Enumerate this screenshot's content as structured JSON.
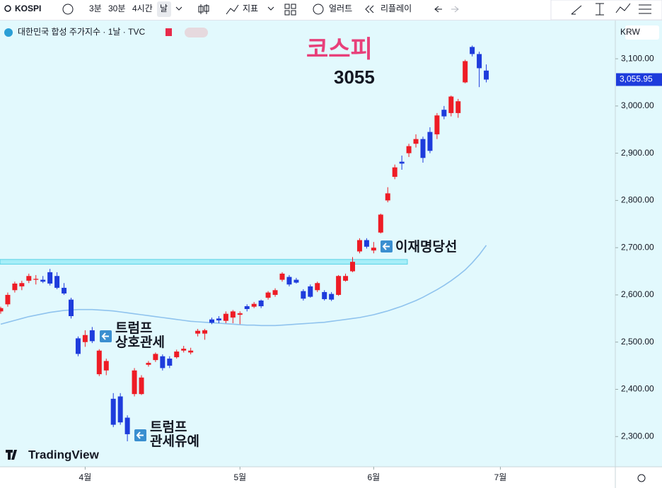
{
  "toolbar": {
    "symbol": "KOSPI",
    "intervals": [
      "3분",
      "30분",
      "4시간",
      "날"
    ],
    "indicators": "지표",
    "alerts": "얼러트",
    "replay": "리플레이"
  },
  "chart_data": {
    "type": "candlestick",
    "title": "대한민국 합성 주가지수 · 1날 · TVC",
    "currency": "KRW",
    "logo": "TradingView",
    "up_color": "#ee1c25",
    "down_color": "#1e3cdc",
    "ylim": [
      2236,
      3181
    ],
    "yticks": [
      {
        "value": 2300,
        "label": "2,300.00"
      },
      {
        "value": 2400,
        "label": "2,400.00"
      },
      {
        "value": 2500,
        "label": "2,500.00"
      },
      {
        "value": 2600,
        "label": "2,600.00"
      },
      {
        "value": 2700,
        "label": "2,700.00"
      },
      {
        "value": 2800,
        "label": "2,800.00"
      },
      {
        "value": 2900,
        "label": "2,900.00"
      },
      {
        "value": 3000,
        "label": "3,000.00"
      },
      {
        "value": 3100,
        "label": "3,100.00"
      }
    ],
    "xticks": [
      {
        "value": 12,
        "label": "4월"
      },
      {
        "value": 34,
        "label": "5월"
      },
      {
        "value": 53,
        "label": "6월"
      },
      {
        "value": 71,
        "label": "7월"
      }
    ],
    "last_price": {
      "value": 3055.95,
      "label": "3,055.95"
    },
    "band": [
      2665,
      2675
    ],
    "annotations": {
      "main_title": "코스피",
      "main_value": "3055",
      "tariff": [
        "트럼프",
        "상호관세"
      ],
      "election": "이재명당선",
      "pause": [
        "트럼프",
        "관세유예"
      ]
    },
    "candles": [
      [
        2565,
        2575,
        2560,
        2572
      ],
      [
        2580,
        2605,
        2575,
        2600
      ],
      [
        2610,
        2628,
        2605,
        2624
      ],
      [
        2618,
        2630,
        2610,
        2625
      ],
      [
        2630,
        2645,
        2625,
        2640
      ],
      [
        2632,
        2642,
        2622,
        2634
      ],
      [
        2632,
        2640,
        2625,
        2628
      ],
      [
        2648,
        2655,
        2620,
        2624
      ],
      [
        2640,
        2648,
        2612,
        2615
      ],
      [
        2615,
        2625,
        2600,
        2603
      ],
      [
        2590,
        2594,
        2550,
        2555
      ],
      [
        2508,
        2512,
        2470,
        2475
      ],
      [
        2500,
        2525,
        2490,
        2515
      ],
      [
        2525,
        2532,
        2498,
        2502
      ],
      [
        2432,
        2485,
        2428,
        2482
      ],
      [
        2440,
        2465,
        2430,
        2460
      ],
      [
        2380,
        2392,
        2320,
        2325
      ],
      [
        2385,
        2392,
        2325,
        2330
      ],
      [
        2340,
        2345,
        2290,
        2305
      ],
      [
        2390,
        2445,
        2385,
        2440
      ],
      [
        2390,
        2430,
        2388,
        2425
      ],
      [
        2452,
        2460,
        2448,
        2456
      ],
      [
        2462,
        2478,
        2458,
        2475
      ],
      [
        2470,
        2474,
        2440,
        2445
      ],
      [
        2465,
        2470,
        2445,
        2450
      ],
      [
        2468,
        2484,
        2465,
        2480
      ],
      [
        2482,
        2492,
        2478,
        2486
      ],
      [
        2478,
        2488,
        2474,
        2482
      ],
      [
        2518,
        2528,
        2512,
        2524
      ],
      [
        2518,
        2528,
        2505,
        2525
      ],
      [
        2548,
        2552,
        2538,
        2541
      ],
      [
        2550,
        2555,
        2540,
        2546
      ],
      [
        2545,
        2565,
        2540,
        2560
      ],
      [
        2552,
        2568,
        2540,
        2565
      ],
      [
        2558,
        2565,
        2538,
        2561
      ],
      [
        2576,
        2580,
        2565,
        2570
      ],
      [
        2575,
        2585,
        2572,
        2581
      ],
      [
        2588,
        2590,
        2572,
        2576
      ],
      [
        2594,
        2608,
        2590,
        2605
      ],
      [
        2600,
        2614,
        2596,
        2610
      ],
      [
        2632,
        2648,
        2628,
        2645
      ],
      [
        2638,
        2642,
        2618,
        2622
      ],
      [
        2632,
        2636,
        2624,
        2626
      ],
      [
        2608,
        2612,
        2588,
        2592
      ],
      [
        2618,
        2622,
        2594,
        2596
      ],
      [
        2610,
        2628,
        2606,
        2625
      ],
      [
        2606,
        2610,
        2588,
        2591
      ],
      [
        2602,
        2606,
        2587,
        2590
      ],
      [
        2600,
        2642,
        2598,
        2640
      ],
      [
        2630,
        2645,
        2628,
        2640
      ],
      [
        2650,
        2680,
        2648,
        2670
      ],
      [
        2692,
        2720,
        2688,
        2716
      ],
      [
        2716,
        2720,
        2698,
        2702
      ],
      [
        2694,
        2712,
        2688,
        2700
      ],
      [
        2732,
        2772,
        2730,
        2770
      ],
      [
        2800,
        2828,
        2796,
        2815
      ],
      [
        2850,
        2876,
        2845,
        2870
      ],
      [
        2882,
        2895,
        2865,
        2878
      ],
      [
        2900,
        2920,
        2892,
        2915
      ],
      [
        2920,
        2940,
        2912,
        2930
      ],
      [
        2930,
        2935,
        2880,
        2890
      ],
      [
        2945,
        2955,
        2900,
        2905
      ],
      [
        2940,
        2985,
        2930,
        2980
      ],
      [
        2992,
        3000,
        2972,
        2978
      ],
      [
        2985,
        3022,
        2978,
        3020
      ],
      [
        2985,
        3015,
        2975,
        3010
      ],
      [
        3050,
        3098,
        3048,
        3095
      ],
      [
        3125,
        3128,
        3105,
        3110
      ],
      [
        3110,
        3115,
        3040,
        3080
      ],
      [
        3075,
        3088,
        3050,
        3055.95
      ]
    ],
    "ma": {
      "color": "#8fc3ee",
      "values": [
        2538,
        2542,
        2546,
        2550,
        2554,
        2557,
        2560,
        2563,
        2565,
        2567,
        2568,
        2569,
        2569,
        2569,
        2568,
        2567,
        2566,
        2564,
        2562,
        2560,
        2558,
        2556,
        2554,
        2552,
        2550,
        2548,
        2546,
        2544,
        2543,
        2542,
        2541,
        2540,
        2539,
        2538,
        2537,
        2536,
        2536,
        2535,
        2535,
        2535,
        2536,
        2537,
        2538,
        2539,
        2540,
        2541,
        2542,
        2544,
        2546,
        2548,
        2550,
        2552,
        2555,
        2558,
        2562,
        2566,
        2571,
        2576,
        2582,
        2588,
        2595,
        2603,
        2611,
        2620,
        2630,
        2641,
        2653,
        2668,
        2685,
        2705
      ]
    }
  }
}
